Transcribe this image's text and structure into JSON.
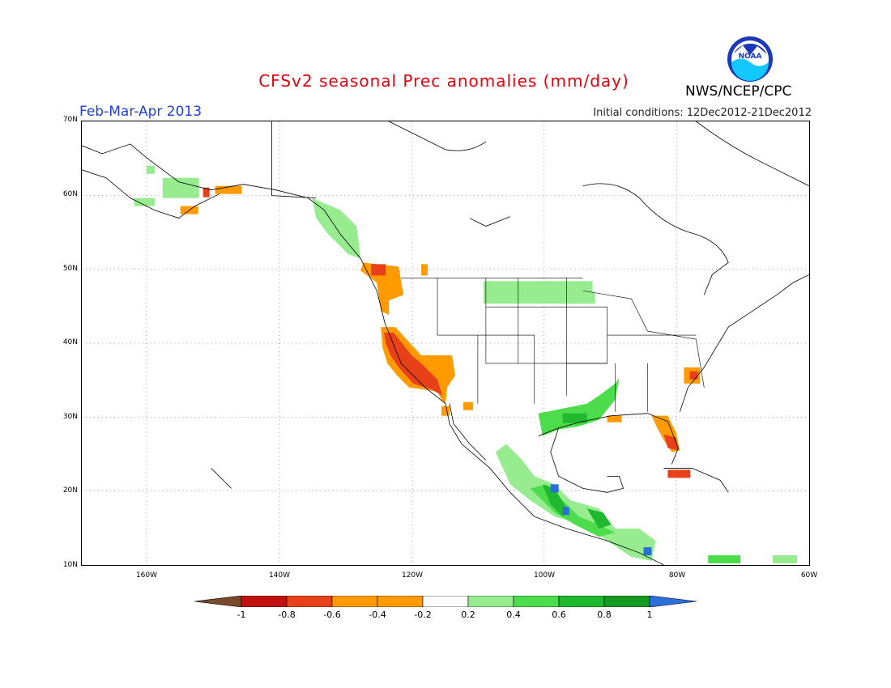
{
  "title": "CFSv2 seasonal Prec anomalies (mm/day)",
  "period": "Feb-Mar-Apr 2013",
  "initial_conditions": "Initial conditions: 12Dec2012-21Dec2012",
  "agency": "NWS/NCEP/CPC",
  "logo_text": "NOAA",
  "axes": {
    "lat_labels": [
      "70N",
      "60N",
      "50N",
      "40N",
      "30N",
      "20N",
      "10N"
    ],
    "lon_labels": [
      "160W",
      "140W",
      "120W",
      "100W",
      "80W",
      "60W"
    ]
  },
  "colorbar": {
    "labels": [
      "-1",
      "-0.8",
      "-0.6",
      "-0.4",
      "-0.2",
      "0.2",
      "0.4",
      "0.6",
      "0.8",
      "1"
    ],
    "colors": [
      "#7a4a2a",
      "#c01010",
      "#e84018",
      "#ff9a00",
      "#ffffff",
      "#96ec8e",
      "#4cdc4c",
      "#20b82e",
      "#129a23",
      "#2a6fdc"
    ]
  },
  "regions": [
    {
      "name": "california-dry",
      "anomaly": "-0.6 to -0.8",
      "color": "#e84018"
    },
    {
      "name": "southwest-dry",
      "anomaly": "-0.4",
      "color": "#ff9a00"
    },
    {
      "name": "pacific-northwest-dry",
      "anomaly": "-0.4",
      "color": "#ff9a00"
    },
    {
      "name": "florida-dry",
      "anomaly": "-0.4 to -0.6",
      "color": "#e84018"
    },
    {
      "name": "north-carolina-dry",
      "anomaly": "-0.4 to -0.6",
      "color": "#e84018"
    },
    {
      "name": "cuba-dry",
      "anomaly": "-0.6",
      "color": "#e84018"
    },
    {
      "name": "gulf-coast-wet",
      "anomaly": "0.4 to 0.8",
      "color": "#20b82e"
    },
    {
      "name": "mexico-wet",
      "anomaly": "0.2 to 1",
      "color": "#4cdc4c"
    },
    {
      "name": "northern-plains-wet",
      "anomaly": "0.2",
      "color": "#96ec8e"
    },
    {
      "name": "alaska-wet",
      "anomaly": "0.2",
      "color": "#96ec8e"
    },
    {
      "name": "central-america-wet",
      "anomaly": "0.2 to 0.6",
      "color": "#4cdc4c"
    }
  ]
}
